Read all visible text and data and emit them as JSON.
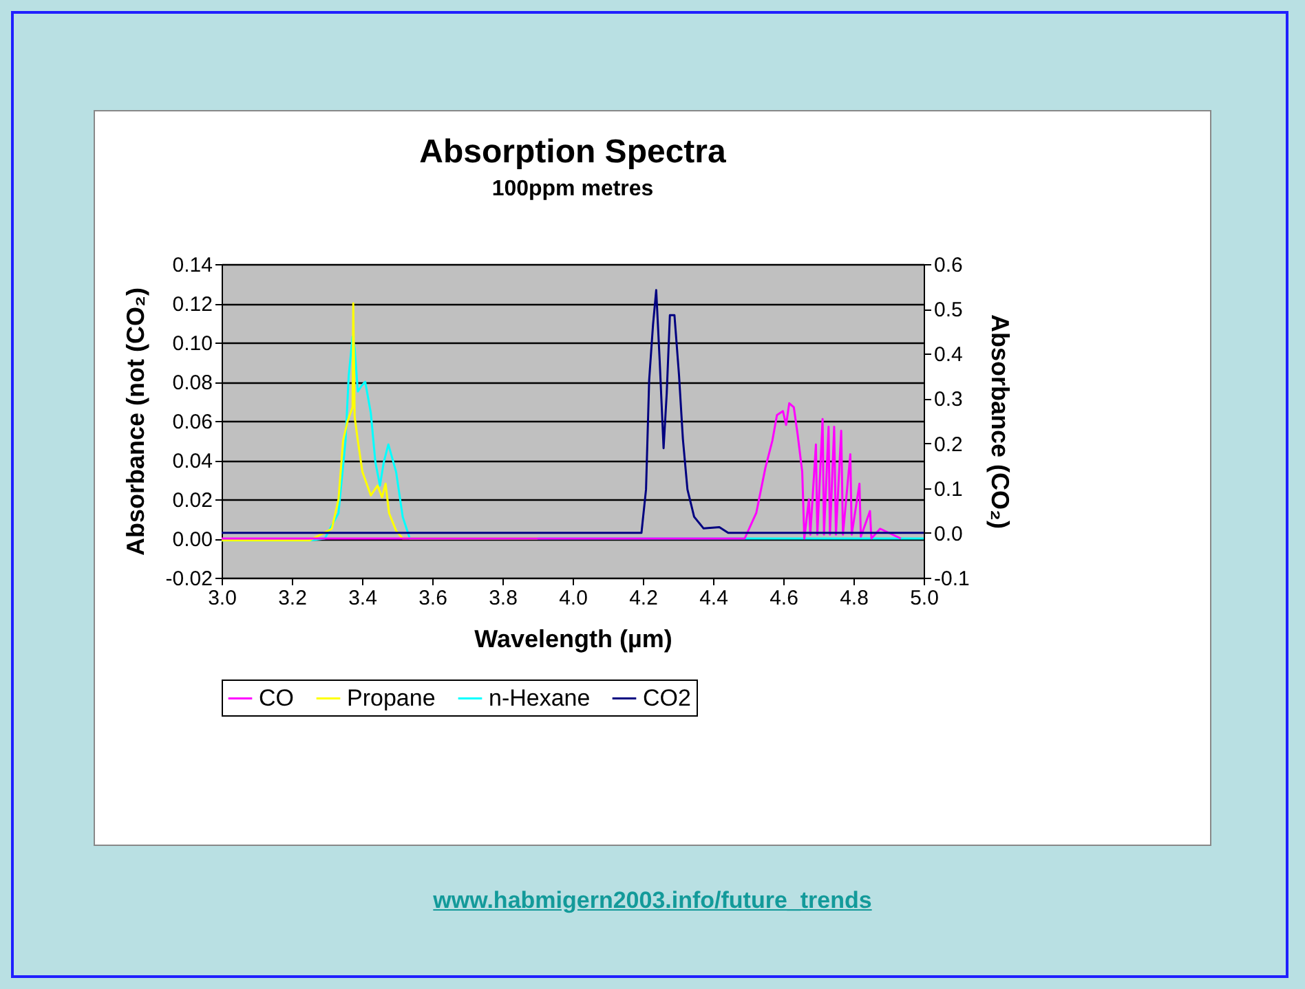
{
  "chart_data": {
    "type": "line",
    "title": "Absorption Spectra",
    "subtitle": "100ppm metres",
    "xlabel": "Wavelength (µm)",
    "ylabel": "Absorbance (not (CO₂)",
    "y2label": "Absorbance (CO₂)",
    "xlim": [
      3.0,
      5.0
    ],
    "xticks": [
      {
        "value": 3.0,
        "label": "3.0"
      },
      {
        "value": 3.2,
        "label": "3.2"
      },
      {
        "value": 3.4,
        "label": "3.4"
      },
      {
        "value": 3.6,
        "label": "3.6"
      },
      {
        "value": 3.8,
        "label": "3.8"
      },
      {
        "value": 4.0,
        "label": "4.0"
      },
      {
        "value": 4.2,
        "label": "4.2"
      },
      {
        "value": 4.4,
        "label": "4.4"
      },
      {
        "value": 4.6,
        "label": "4.6"
      },
      {
        "value": 4.8,
        "label": "4.8"
      },
      {
        "value": 5.0,
        "label": "5.0"
      }
    ],
    "ylim": [
      -0.02,
      0.14
    ],
    "yticks": [
      {
        "value": -0.02,
        "label": "-0.02"
      },
      {
        "value": 0,
        "label": "0.00"
      },
      {
        "value": 0.02,
        "label": "0.02"
      },
      {
        "value": 0.04,
        "label": "0.04"
      },
      {
        "value": 0.06,
        "label": "0.06"
      },
      {
        "value": 0.08,
        "label": "0.08"
      },
      {
        "value": 0.1,
        "label": "0.10"
      },
      {
        "value": 0.12,
        "label": "0.12"
      },
      {
        "value": 0.14,
        "label": "0.14"
      }
    ],
    "y2lim": [
      -0.1,
      0.6
    ],
    "y2ticks": [
      {
        "value": -0.1,
        "label": "-0.1"
      },
      {
        "value": 0,
        "label": "0.0"
      },
      {
        "value": 0.1,
        "label": "0.1"
      },
      {
        "value": 0.2,
        "label": "0.2"
      },
      {
        "value": 0.3,
        "label": "0.3"
      },
      {
        "value": 0.4,
        "label": "0.4"
      },
      {
        "value": 0.5,
        "label": "0.5"
      },
      {
        "value": 0.6,
        "label": "0.6"
      }
    ],
    "grid": "y",
    "legend": "bottom",
    "marker": "none",
    "line_style": "solid",
    "series": [
      {
        "name": "CO",
        "color": "#ff00ff",
        "x": [
          3.0,
          4.49,
          4.523,
          4.549,
          4.569,
          4.582,
          4.599,
          4.608,
          4.617,
          4.63,
          4.641,
          4.654,
          4.66,
          4.673,
          4.677,
          4.693,
          4.697,
          4.712,
          4.716,
          4.729,
          4.733,
          4.745,
          4.75,
          4.765,
          4.77,
          4.791,
          4.795,
          4.817,
          4.821,
          4.847,
          4.851,
          4.876,
          4.935
        ],
        "values": [
          0,
          0,
          0.013,
          0.036,
          0.05,
          0.063,
          0.065,
          0.058,
          0.069,
          0.067,
          0.053,
          0.034,
          0,
          0.02,
          0.002,
          0.048,
          0.002,
          0.061,
          0.002,
          0.057,
          0.002,
          0.057,
          0.002,
          0.055,
          0.002,
          0.043,
          0.002,
          0.028,
          0.001,
          0.014,
          0,
          0.005,
          0
        ]
      },
      {
        "name": "Propane",
        "color": "#ffff00",
        "x": [
          3.0,
          3.25,
          3.314,
          3.333,
          3.346,
          3.359,
          3.373,
          3.375,
          3.379,
          3.388,
          3.401,
          3.425,
          3.444,
          3.457,
          3.467,
          3.477,
          3.497,
          3.516,
          3.9
        ],
        "values": [
          -0.001,
          -0.001,
          0.005,
          0.02,
          0.05,
          0.06,
          0.067,
          0.12,
          0.062,
          0.05,
          0.034,
          0.022,
          0.027,
          0.021,
          0.028,
          0.013,
          0.004,
          0,
          0
        ]
      },
      {
        "name": "n-Hexane",
        "color": "#00ffff",
        "x": [
          3.0,
          3.25,
          3.294,
          3.333,
          3.353,
          3.362,
          3.373,
          3.379,
          3.388,
          3.399,
          3.409,
          3.425,
          3.438,
          3.451,
          3.462,
          3.475,
          3.497,
          3.516,
          3.536,
          5.0
        ],
        "values": [
          -0.001,
          -0.001,
          0,
          0.013,
          0.05,
          0.083,
          0.103,
          0.097,
          0.075,
          0.078,
          0.08,
          0.064,
          0.039,
          0.027,
          0.039,
          0.048,
          0.034,
          0.011,
          0,
          0
        ]
      },
      {
        "name": "CO2",
        "color": "#000080",
        "axis": "y2",
        "x": [
          3.0,
          4.196,
          4.209,
          4.218,
          4.229,
          4.238,
          4.248,
          4.259,
          4.268,
          4.277,
          4.29,
          4.303,
          4.314,
          4.327,
          4.346,
          4.373,
          4.418,
          4.443,
          5.0
        ],
        "values": [
          0,
          0,
          0.097,
          0.342,
          0.465,
          0.542,
          0.383,
          0.189,
          0.312,
          0.486,
          0.486,
          0.352,
          0.21,
          0.097,
          0.036,
          0.01,
          0.013,
          0,
          0
        ]
      }
    ],
    "annotations": [
      "www.habmigern2003.info/future_trends"
    ]
  }
}
